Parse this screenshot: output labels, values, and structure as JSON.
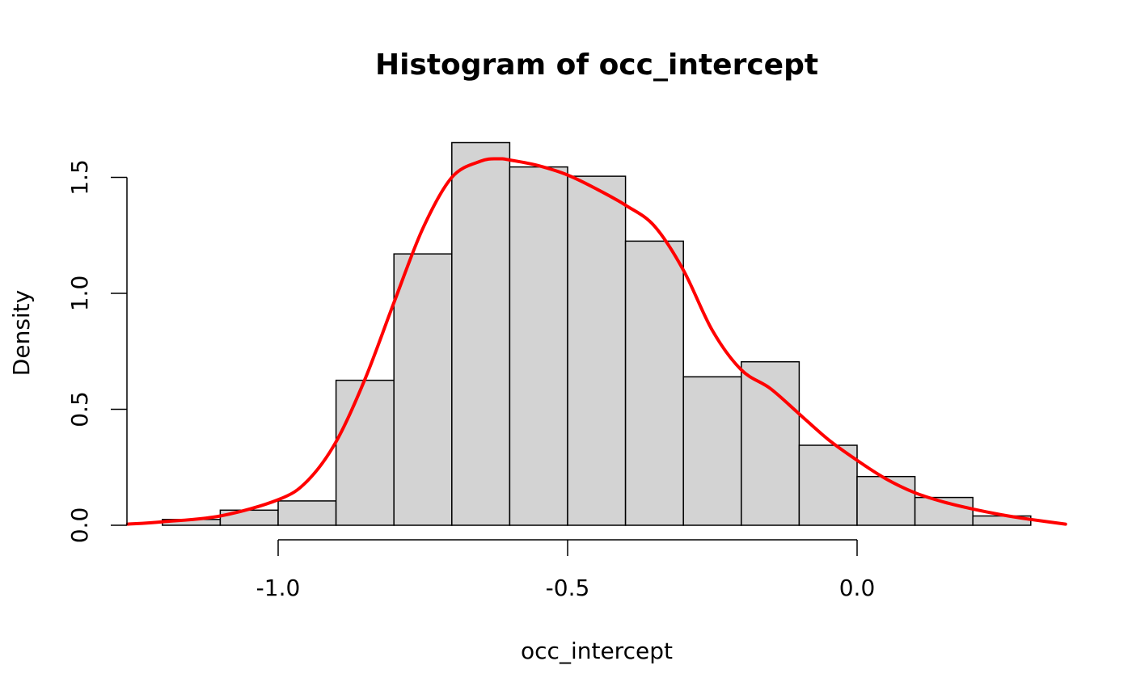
{
  "chart_data": {
    "type": "bar",
    "title": "Histogram of occ_intercept",
    "xlabel": "occ_intercept",
    "ylabel": "Density",
    "bins": [
      {
        "from": -1.2,
        "to": -1.1,
        "density": 0.025
      },
      {
        "from": -1.1,
        "to": -1.0,
        "density": 0.065
      },
      {
        "from": -1.0,
        "to": -0.9,
        "density": 0.105
      },
      {
        "from": -0.9,
        "to": -0.8,
        "density": 0.625
      },
      {
        "from": -0.8,
        "to": -0.7,
        "density": 1.17
      },
      {
        "from": -0.7,
        "to": -0.6,
        "density": 1.65
      },
      {
        "from": -0.6,
        "to": -0.5,
        "density": 1.545
      },
      {
        "from": -0.5,
        "to": -0.4,
        "density": 1.505
      },
      {
        "from": -0.4,
        "to": -0.3,
        "density": 1.225
      },
      {
        "from": -0.3,
        "to": -0.2,
        "density": 0.64
      },
      {
        "from": -0.2,
        "to": -0.1,
        "density": 0.705
      },
      {
        "from": -0.1,
        "to": 0.0,
        "density": 0.345
      },
      {
        "from": 0.0,
        "to": 0.1,
        "density": 0.21
      },
      {
        "from": 0.1,
        "to": 0.2,
        "density": 0.12
      },
      {
        "from": 0.2,
        "to": 0.3,
        "density": 0.04
      }
    ],
    "density_curve": {
      "color": "#ff0000",
      "x": [
        -1.26,
        -1.2,
        -1.1,
        -1.0,
        -0.95,
        -0.9,
        -0.85,
        -0.8,
        -0.75,
        -0.7,
        -0.65,
        -0.62,
        -0.6,
        -0.55,
        -0.5,
        -0.45,
        -0.4,
        -0.35,
        -0.3,
        -0.25,
        -0.2,
        -0.15,
        -0.1,
        -0.05,
        0.0,
        0.05,
        0.1,
        0.15,
        0.2,
        0.25,
        0.3,
        0.36
      ],
      "y": [
        0.005,
        0.015,
        0.04,
        0.11,
        0.19,
        0.36,
        0.63,
        0.96,
        1.28,
        1.5,
        1.57,
        1.58,
        1.575,
        1.55,
        1.51,
        1.45,
        1.38,
        1.29,
        1.1,
        0.84,
        0.67,
        0.59,
        0.48,
        0.37,
        0.28,
        0.2,
        0.14,
        0.1,
        0.07,
        0.045,
        0.025,
        0.005
      ]
    },
    "xlim": [
      -1.26,
      0.36
    ],
    "ylim": [
      0,
      1.65
    ],
    "x_ticks": [
      -1.0,
      -0.5,
      0.0
    ],
    "x_tick_labels": [
      "-1.0",
      "-0.5",
      "0.0"
    ],
    "y_ticks": [
      0.0,
      0.5,
      1.0,
      1.5
    ],
    "y_tick_labels": [
      "0.0",
      "0.5",
      "1.0",
      "1.5"
    ],
    "grid": false,
    "bar_fill": "#d3d3d3",
    "bar_stroke": "#000000"
  }
}
